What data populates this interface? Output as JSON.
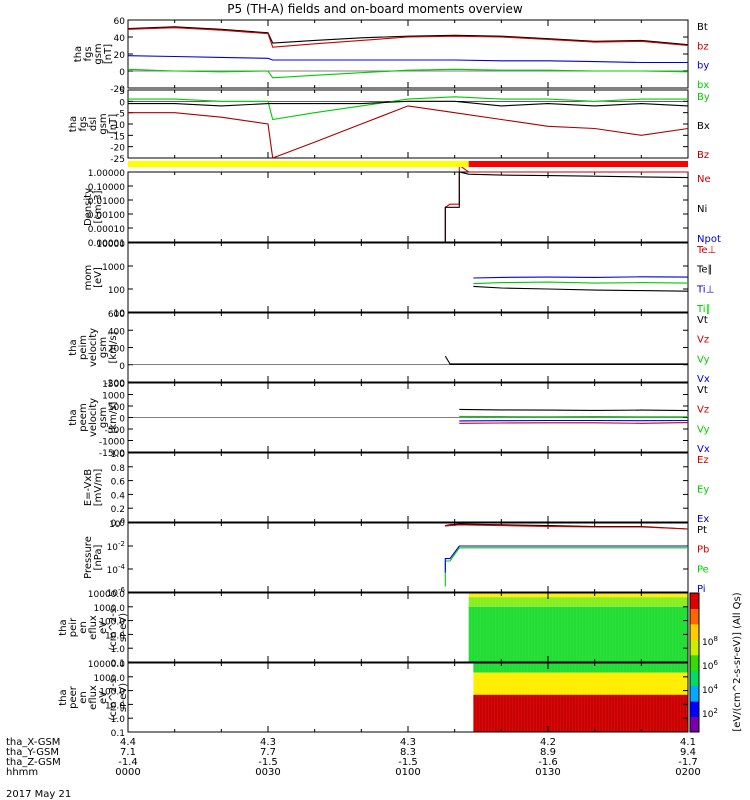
{
  "title": "P5 (TH-A) fields and on-board moments overview",
  "date_label": "2017 May 21",
  "ephemeris": {
    "labels": [
      "tha_X-GSM",
      "tha_Y-GSM",
      "tha_Z-GSM",
      "hhmm"
    ],
    "columns": [
      [
        "4.4",
        "7.1",
        "-1.4",
        "0000"
      ],
      [
        "4.3",
        "7.7",
        "-1.5",
        "0030"
      ],
      [
        "4.3",
        "8.3",
        "-1.5",
        "0100"
      ],
      [
        "4.2",
        "8.9",
        "-1.6",
        "0130"
      ],
      [
        "4.1",
        "9.4",
        "-1.7",
        "0200"
      ]
    ]
  },
  "mode_bar": {
    "colors": [
      "#ffff00",
      "#ff0000"
    ],
    "switch_time_hhmm": "0113"
  },
  "colorbar": {
    "label": "[eV/(cm^2-s-sr-eV)] (All Qs)",
    "ticks": [
      "10^2",
      "10^4",
      "10^6",
      "10^8"
    ]
  },
  "chart_data": [
    {
      "id": "fgs_gsm",
      "type": "line",
      "ylabel": [
        "tha",
        "fgs",
        "gsm",
        "[nT]"
      ],
      "ylim": [
        -20,
        60
      ],
      "yticks": [
        "60",
        "40",
        "20",
        "0",
        "-20"
      ],
      "x_hhmm": [
        "0000",
        "0010",
        "0020",
        "0030",
        "0031",
        "0040",
        "0050",
        "0100",
        "0110",
        "0120",
        "0130",
        "0140",
        "0150",
        "0200"
      ],
      "series": [
        {
          "name": "Bt",
          "color": "#000000",
          "values": [
            50,
            52,
            49,
            45,
            33,
            36,
            39,
            41,
            42,
            41,
            38,
            35,
            36,
            31
          ]
        },
        {
          "name": "bz",
          "color": "#cc0000",
          "values": [
            49,
            51,
            48,
            44,
            28,
            32,
            36,
            40,
            41,
            40,
            37,
            34,
            35,
            30
          ]
        },
        {
          "name": "by",
          "color": "#0000dd",
          "values": [
            18,
            17,
            16,
            15,
            13,
            13,
            13,
            13,
            13,
            12,
            12,
            11,
            10,
            10
          ]
        },
        {
          "name": "bx",
          "color": "#00cc00",
          "values": [
            2,
            0,
            -1,
            0,
            -8,
            -5,
            -2,
            1,
            2,
            1,
            1,
            0,
            0,
            -1
          ]
        }
      ]
    },
    {
      "id": "fgs_gsm_dsl",
      "type": "line",
      "ylabel": [
        "tha",
        "fgs",
        "dsl",
        "gsm",
        "[nT]"
      ],
      "ylim": [
        -25,
        5
      ],
      "yticks": [
        "5",
        "0",
        "-5",
        "-10",
        "-15",
        "-20",
        "-25"
      ],
      "x_hhmm": [
        "0000",
        "0010",
        "0020",
        "0030",
        "0031",
        "0040",
        "0050",
        "0100",
        "0110",
        "0120",
        "0130",
        "0140",
        "0150",
        "0200"
      ],
      "series": [
        {
          "name": "By",
          "color": "#00cc00",
          "values": [
            1,
            1,
            0,
            0,
            -8,
            -5,
            -2,
            1,
            2,
            1,
            1,
            0,
            1,
            1
          ]
        },
        {
          "name": "Bx",
          "color": "#000000",
          "values": [
            -1,
            -1,
            -2,
            -1,
            -1,
            -1,
            -1,
            0,
            0,
            -2,
            -1,
            -2,
            -1,
            -2
          ]
        },
        {
          "name": "Bz",
          "color": "#aa0000",
          "values": [
            -5,
            -5,
            -7,
            -10,
            -25,
            -18,
            -10,
            -2,
            -5,
            -8,
            -11,
            -12,
            -15,
            -12
          ]
        }
      ]
    },
    {
      "id": "density",
      "type": "line",
      "yscale": "log",
      "ylabel": [
        "Density",
        "[cm-3]"
      ],
      "ylim": [
        1e-05,
        1
      ],
      "yticks": [
        "1.00000",
        "0.10000",
        "0.01000",
        "0.00100",
        "0.00010",
        "0.00001"
      ],
      "x_hhmm": [
        "0108",
        "0108",
        "0109",
        "0111",
        "0111",
        "0113",
        "0120",
        "0130",
        "0140",
        "0150",
        "0200"
      ],
      "series": [
        {
          "name": "Ne",
          "color": "#cc0000",
          "values": [
            1e-05,
            0.003,
            0.005,
            0.005,
            3,
            1,
            1,
            1,
            1,
            1,
            1
          ]
        },
        {
          "name": "Ni",
          "color": "#000000",
          "values": [
            1e-05,
            0.003,
            0.003,
            0.003,
            1,
            0.7,
            0.6,
            0.55,
            0.5,
            0.45,
            0.4
          ]
        },
        {
          "name": "Npot",
          "color": "#0000dd",
          "values": []
        }
      ]
    },
    {
      "id": "temperature",
      "type": "line",
      "yscale": "log",
      "ylabel": [
        "mom",
        "[eV]"
      ],
      "ylim": [
        10,
        10000
      ],
      "yticks": [
        "10000",
        "1000",
        "100",
        "10"
      ],
      "x_hhmm": [
        "0114",
        "0120",
        "0130",
        "0140",
        "0150",
        "0200"
      ],
      "series": [
        {
          "name": "Te⊥",
          "color": "#cc0000",
          "values": []
        },
        {
          "name": "Te∥",
          "color": "#000000",
          "values": [
            130,
            110,
            100,
            90,
            85,
            80
          ]
        },
        {
          "name": "Ti⊥",
          "color": "#0000dd",
          "values": [
            300,
            320,
            330,
            320,
            340,
            330
          ]
        },
        {
          "name": "Ti∥",
          "color": "#00cc00",
          "values": [
            170,
            190,
            200,
            180,
            190,
            180
          ]
        }
      ]
    },
    {
      "id": "peim_velocity",
      "type": "line",
      "ylabel": [
        "tha",
        "peim",
        "velocity",
        "gsm",
        "[km/s]"
      ],
      "ylim": [
        -200,
        600
      ],
      "yticks": [
        "600",
        "400",
        "200",
        "0",
        "-200"
      ],
      "x_hhmm": [
        "0108",
        "0109",
        "0120",
        "0130",
        "0140",
        "0150",
        "0200"
      ],
      "series": [
        {
          "name": "Vt",
          "color": "#000000",
          "values": [
            100,
            10,
            10,
            10,
            10,
            10,
            10
          ]
        },
        {
          "name": "Vz",
          "color": "#cc0000",
          "values": []
        },
        {
          "name": "Vy",
          "color": "#00cc00",
          "values": []
        },
        {
          "name": "Vx",
          "color": "#0000dd",
          "values": []
        }
      ]
    },
    {
      "id": "peem_velocity",
      "type": "line",
      "ylabel": [
        "tha",
        "peem",
        "velocity",
        "gsm",
        "[km/s]"
      ],
      "ylim": [
        -1500,
        1500
      ],
      "yticks": [
        "1500",
        "1000",
        "500",
        "0",
        "-500",
        "-1000",
        "-1500"
      ],
      "x_hhmm": [
        "0111",
        "0120",
        "0130",
        "0140",
        "0150",
        "0200"
      ],
      "series": [
        {
          "name": "Vt",
          "color": "#000000",
          "values": [
            350,
            330,
            320,
            310,
            320,
            300
          ]
        },
        {
          "name": "Vz",
          "color": "#cc0000",
          "values": [
            -250,
            -240,
            -230,
            -230,
            -250,
            -220
          ]
        },
        {
          "name": "Vy",
          "color": "#00cc00",
          "values": [
            50,
            40,
            30,
            40,
            30,
            30
          ]
        },
        {
          "name": "Vx",
          "color": "#0000dd",
          "values": [
            -150,
            -140,
            -130,
            -130,
            -140,
            -130
          ]
        }
      ]
    },
    {
      "id": "efield",
      "type": "line",
      "ylabel": [
        "E=-VxB",
        "[mV/m]"
      ],
      "ylim": [
        0,
        1
      ],
      "yticks": [
        "1.0",
        "0.8",
        "0.6",
        "0.4",
        "0.2",
        "0.0"
      ],
      "x_hhmm": [],
      "series": [
        {
          "name": "Ez",
          "color": "#cc0000",
          "values": []
        },
        {
          "name": "Ey",
          "color": "#00cc00",
          "values": []
        },
        {
          "name": "Ex",
          "color": "#0000dd",
          "values": []
        }
      ]
    },
    {
      "id": "pressure",
      "type": "line",
      "yscale": "log",
      "ylabel": [
        "Pressure",
        "[nPa]"
      ],
      "ylim": [
        1e-06,
        1
      ],
      "yticks": [
        "10^0",
        "10^-2",
        "10^-4",
        "10^-6"
      ],
      "x_hhmm": [
        "0108",
        "0108",
        "0109",
        "0111",
        "0120",
        "0130",
        "0140",
        "0150",
        "0200"
      ],
      "series": [
        {
          "name": "Pt",
          "color": "#000000",
          "values": [
            0.6,
            0.6,
            0.7,
            0.8,
            0.7,
            0.6,
            0.5,
            0.5,
            0.3
          ]
        },
        {
          "name": "Pb",
          "color": "#cc0000",
          "values": [
            0.5,
            0.55,
            0.6,
            0.7,
            0.6,
            0.5,
            0.45,
            0.45,
            0.3
          ]
        },
        {
          "name": "Pe",
          "color": "#00cc00",
          "values": [
            3e-06,
            0.0005,
            0.0005,
            0.007,
            0.007,
            0.007,
            0.007,
            0.007,
            0.007
          ]
        },
        {
          "name": "Pi",
          "color": "#0000dd",
          "values": [
            5e-05,
            0.0008,
            0.0008,
            0.01,
            0.01,
            0.01,
            0.01,
            0.01,
            0.01
          ]
        }
      ]
    },
    {
      "id": "peir_spectrogram",
      "type": "heatmap",
      "ylabel": [
        "tha",
        "peir",
        "en",
        "eflux",
        "eV",
        "(cm^2-s-",
        "sr-eV)"
      ],
      "ylim": [
        0.1,
        10000
      ],
      "yticks": [
        "10000.0",
        "1000.0",
        "100.0",
        "10.0",
        "1.0",
        "0.1"
      ],
      "x_start_hhmm": "0113",
      "x_end_hhmm": "0200",
      "bands": [
        {
          "energy_range": [
            5000,
            10000
          ],
          "level": "high"
        },
        {
          "energy_range": [
            1000,
            5000
          ],
          "level": "mid-high"
        },
        {
          "energy_range": [
            0.1,
            1000
          ],
          "level": "mid"
        }
      ]
    },
    {
      "id": "peer_spectrogram",
      "type": "heatmap",
      "ylabel": [
        "tha",
        "peer",
        "en",
        "eflux",
        "eV",
        "(cm^2-s-",
        "sr-eV)"
      ],
      "ylim": [
        0.1,
        10000
      ],
      "yticks": [
        "10000.0",
        "1000.0",
        "100.0",
        "10.0",
        "1.0",
        "0.1"
      ],
      "x_start_hhmm": "0114",
      "x_end_hhmm": "0200",
      "bands": [
        {
          "energy_range": [
            2000,
            10000
          ],
          "level": "mid"
        },
        {
          "energy_range": [
            50,
            2000
          ],
          "level": "high"
        },
        {
          "energy_range": [
            0.1,
            50
          ],
          "level": "very-high"
        }
      ]
    }
  ]
}
